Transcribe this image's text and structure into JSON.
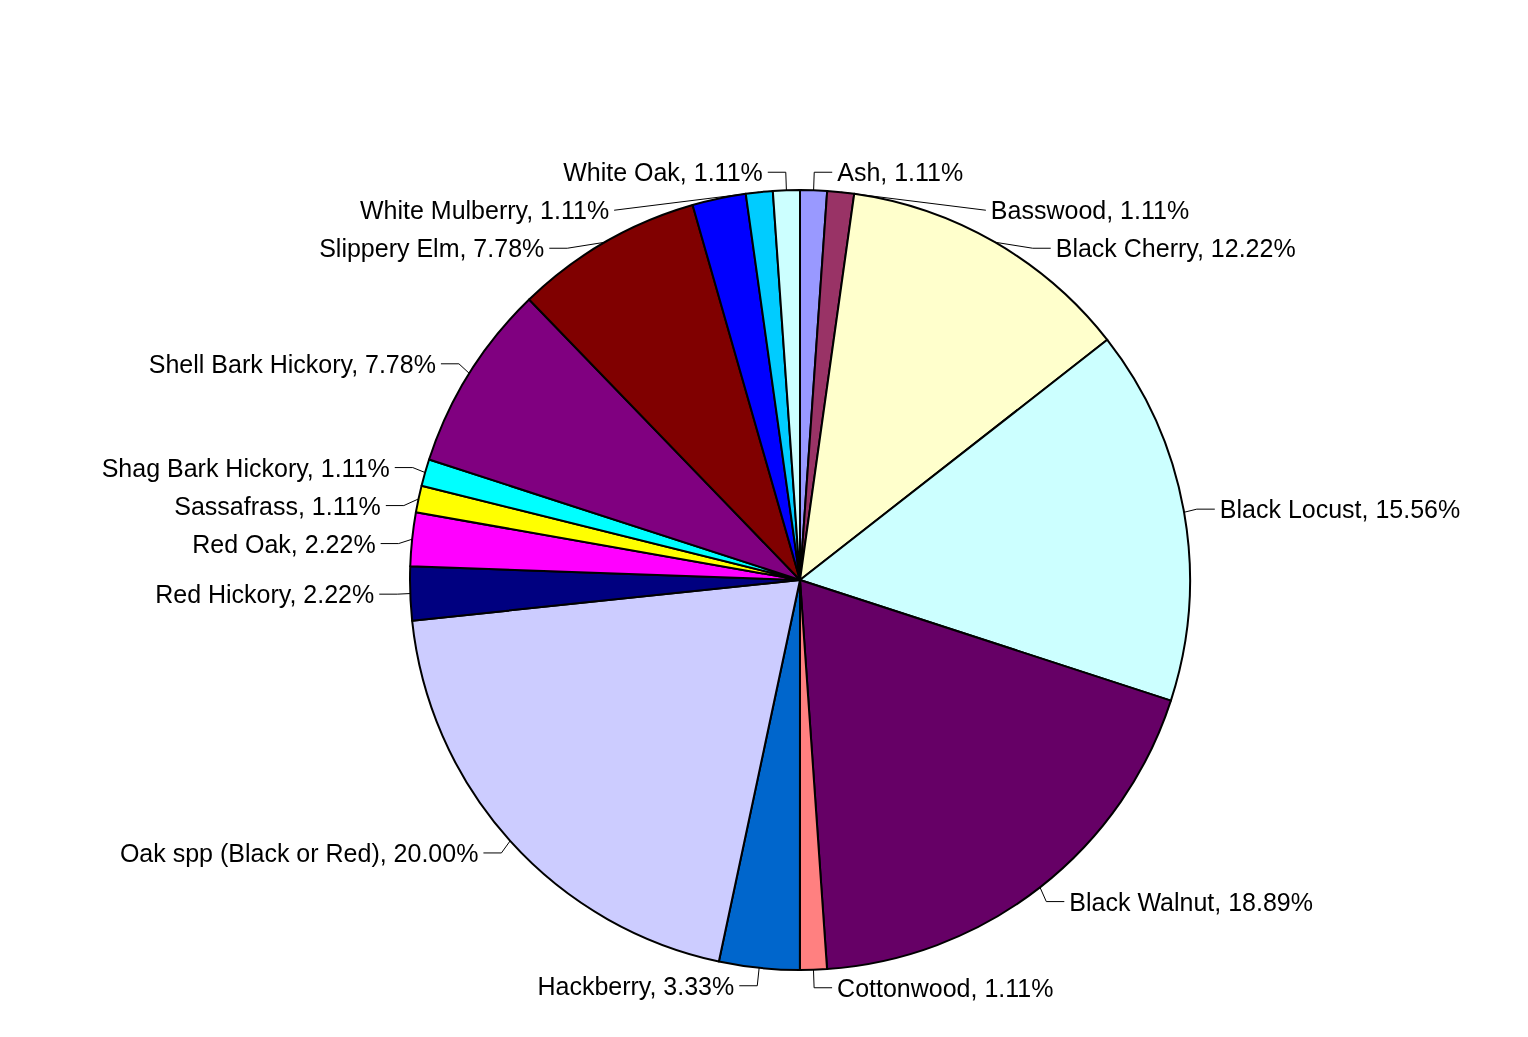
{
  "chart_data": {
    "type": "pie",
    "categories": [
      "Ash",
      "Basswood",
      "Black Cherry",
      "Black Locust",
      "Black Walnut",
      "Cottonwood",
      "Hackberry",
      "Oak spp (Black or Red)",
      "Red Hickory",
      "Red Oak",
      "Sassafrass",
      "Shag Bark Hickory",
      "Shell Bark Hickory",
      "Slippery Elm",
      null,
      "White Mulberry",
      "White Oak"
    ],
    "values": [
      1.11,
      1.11,
      12.22,
      15.56,
      18.89,
      1.11,
      3.33,
      20.0,
      2.22,
      2.22,
      1.11,
      1.11,
      7.78,
      7.78,
      2.22,
      1.11,
      1.11
    ],
    "value_labels": [
      "1.11%",
      "1.11%",
      "12.22%",
      "15.56%",
      "18.89%",
      "1.11%",
      "3.33%",
      "20.00%",
      "2.22%",
      "2.22%",
      "1.11%",
      "1.11%",
      "7.78%",
      "7.78%",
      null,
      "1.11%",
      "1.11%"
    ],
    "colors": [
      "#9999ff",
      "#993366",
      "#ffffcc",
      "#ccffff",
      "#660066",
      "#ff8080",
      "#0066cc",
      "#ccccff",
      "#000080",
      "#ff00ff",
      "#ffff00",
      "#00ffff",
      "#800080",
      "#800000",
      "#0000ff",
      "#00ccff",
      "#ccffff"
    ],
    "legend": false
  }
}
